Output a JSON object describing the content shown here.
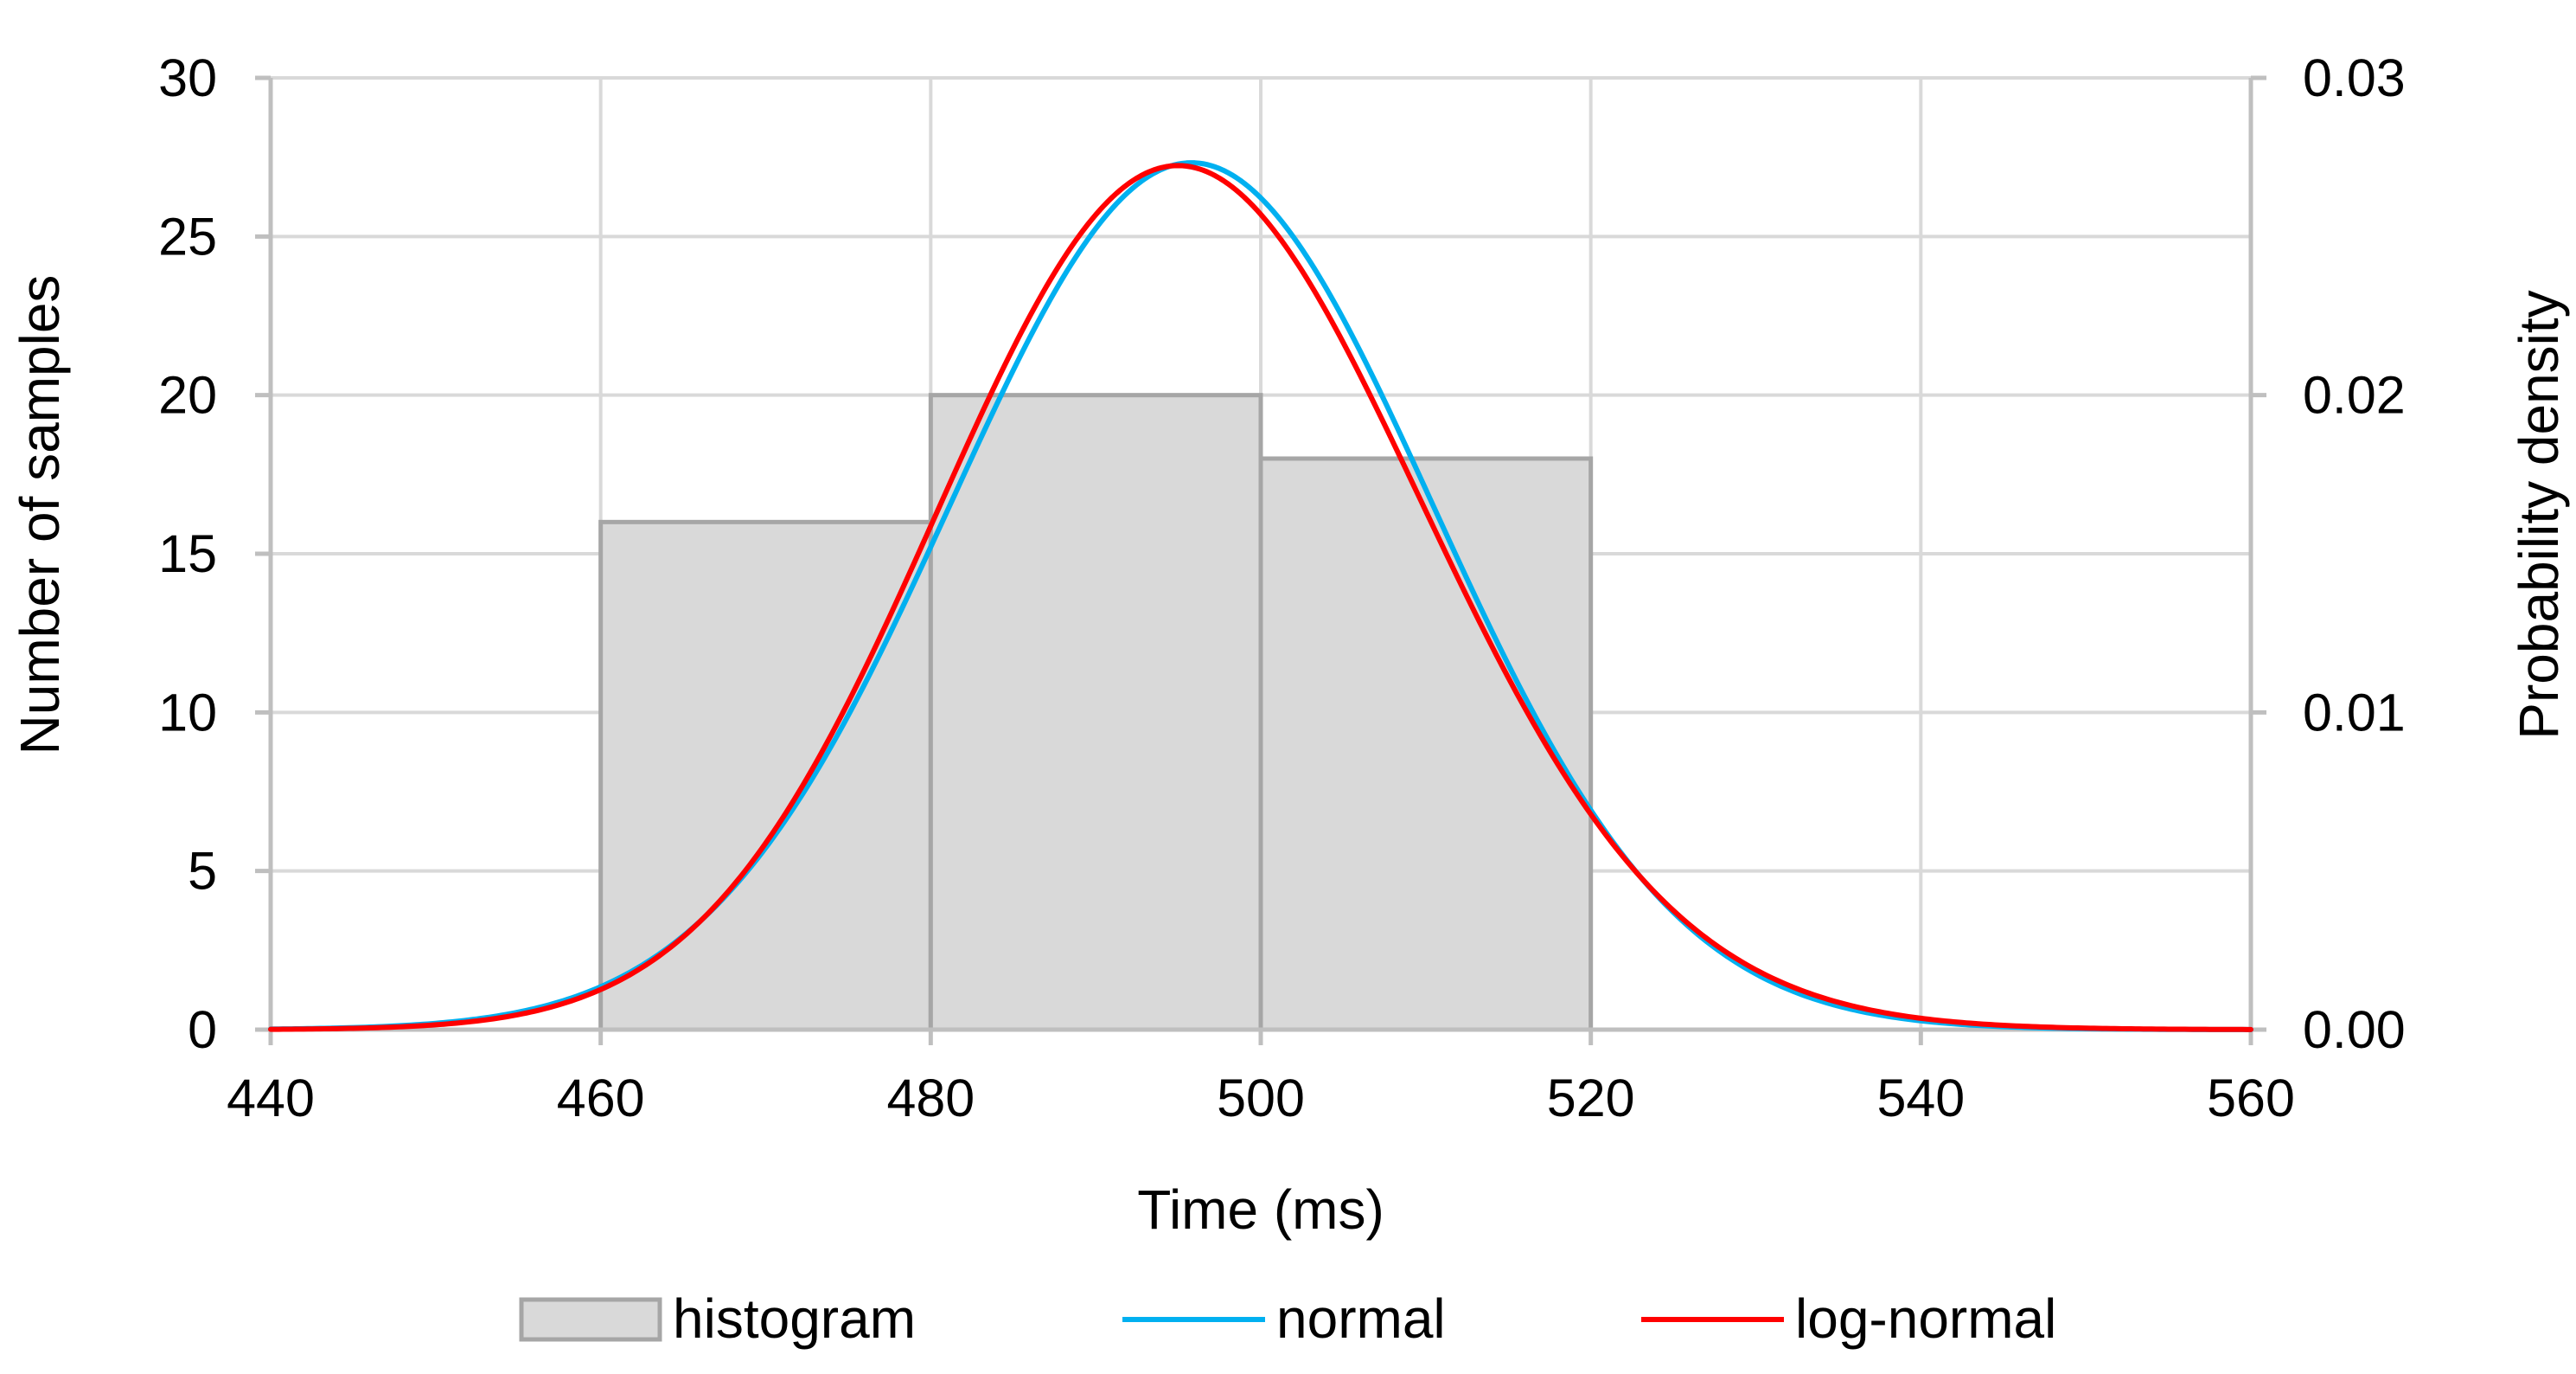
{
  "chart_data": {
    "type": "bar",
    "title": "",
    "xlabel": "Time (ms)",
    "ylabel": "Number of samples",
    "y2label": "Probability density",
    "xlim": [
      440,
      560
    ],
    "ylim": [
      0,
      30
    ],
    "y2lim": [
      0,
      0.03
    ],
    "x_ticks": [
      "440",
      "460",
      "480",
      "500",
      "520",
      "540",
      "560"
    ],
    "y_ticks": [
      "0",
      "5",
      "10",
      "15",
      "20",
      "25",
      "30"
    ],
    "y2_ticks": [
      "0.00",
      "0.01",
      "0.02",
      "0.03"
    ],
    "grid": true,
    "legend_position": "bottom",
    "series": [
      {
        "name": "histogram",
        "kind": "bar",
        "axis": "left",
        "bins": [
          {
            "start": 460,
            "end": 480,
            "count": 16
          },
          {
            "start": 480,
            "end": 500,
            "count": 20
          },
          {
            "start": 500,
            "end": 520,
            "count": 18
          }
        ],
        "color": "#d9d9d9",
        "edge_color": "#a6a6a6"
      },
      {
        "name": "normal",
        "kind": "line",
        "axis": "right",
        "distribution": "normal",
        "mean": 495.8,
        "sd": 14.6,
        "color": "#00b0f0"
      },
      {
        "name": "log-normal",
        "kind": "line",
        "axis": "right",
        "distribution": "log-normal",
        "mu": 6.2054,
        "sigma": 0.02958,
        "color": "#ff0000"
      }
    ]
  }
}
